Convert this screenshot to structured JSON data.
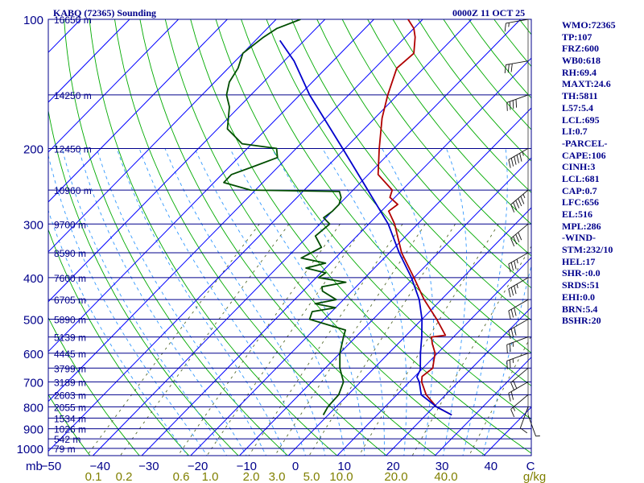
{
  "header": {
    "station": "KABQ (72365) Sounding",
    "time": "0000Z 11 OCT 25"
  },
  "stats": [
    "WMO:72365",
    "TP:107",
    "FRZ:600",
    "WB0:618",
    "RH:69.4",
    "MAXT:24.6",
    "TH:5811",
    "L57:5.4",
    "LCL:695",
    "LI:0.7",
    "-PARCEL-",
    "CAPE:106",
    "CINH:3",
    "LCL:681",
    "CAP:0.7",
    "LFC:656",
    "EL:516",
    "MPL:286",
    "-WIND-",
    "STM:232/10",
    "HEL:17",
    "SHR-:0.0",
    "SRDS:51",
    "EHI:0.0",
    "BRN:5.4",
    "BSHR:20"
  ],
  "colors": {
    "isobar": "#00008b",
    "isotherm": "#0000ff",
    "dry_adiabat": "#00aa00",
    "moist_adiabat": "#3399ff",
    "mixing_ratio": "#556b2f",
    "temperature": "#b00000",
    "dewpoint": "#004d00",
    "parcel": "#0000cc",
    "axis_text": "#00008b",
    "mixing_label": "#808000"
  },
  "chart_data": {
    "type": "line",
    "diagram": "skew-T log-P",
    "title": "KABQ (72365) Sounding",
    "ylabel": "mb",
    "xunit": "C",
    "mixing_unit": "g/kg",
    "grid": true,
    "pressure_levels": [
      100,
      200,
      300,
      400,
      500,
      600,
      700,
      800,
      900,
      1000
    ],
    "pressure_labels": [
      "100",
      "200",
      "300",
      "400",
      "500",
      "600",
      "700",
      "800",
      "900",
      "1000"
    ],
    "temperature_ticks": [
      -50,
      -40,
      -30,
      -20,
      -10,
      0,
      10,
      20,
      30,
      40
    ],
    "temperature_labels": [
      "−50",
      "−40",
      "−30",
      "−20",
      "−10",
      "0",
      "10",
      "20",
      "30",
      "40"
    ],
    "mixing_ratio_labels": [
      "0.1",
      "0.2",
      "0.6",
      "1.0",
      "2.0",
      "3.0",
      "5.0",
      "10.0",
      "20.0",
      "40.0"
    ],
    "height_labels": [
      {
        "p": 100,
        "label": "16650 m"
      },
      {
        "p": 150,
        "label": "14250 m"
      },
      {
        "p": 200,
        "label": "12450 m"
      },
      {
        "p": 250,
        "label": "10960 m"
      },
      {
        "p": 300,
        "label": "9700 m"
      },
      {
        "p": 350,
        "label": "8590 m"
      },
      {
        "p": 400,
        "label": "7600 m"
      },
      {
        "p": 450,
        "label": "6705 m"
      },
      {
        "p": 500,
        "label": "5890 m"
      },
      {
        "p": 550,
        "label": "5139 m"
      },
      {
        "p": 600,
        "label": "4445 m"
      },
      {
        "p": 650,
        "label": "3799 m"
      },
      {
        "p": 700,
        "label": "3189 m"
      },
      {
        "p": 750,
        "label": "2603 m"
      },
      {
        "p": 800,
        "label": "2055 m"
      },
      {
        "p": 850,
        "label": "1534 m"
      },
      {
        "p": 900,
        "label": "1026 m"
      },
      {
        "p": 950,
        "label": "542 m"
      },
      {
        "p": 1000,
        "label": "79 m"
      }
    ],
    "series": [
      {
        "points": [
          [
            836,
            25.3
          ],
          [
            800,
            20.5
          ],
          [
            750,
            16.0
          ],
          [
            700,
            12.5
          ],
          [
            680,
            11.5
          ],
          [
            650,
            12.0
          ],
          [
            620,
            10.5
          ],
          [
            600,
            9.5
          ],
          [
            570,
            7.0
          ],
          [
            550,
            5.5
          ],
          [
            545,
            8.0
          ],
          [
            500,
            3.0
          ],
          [
            450,
            -3.5
          ],
          [
            400,
            -10.0
          ],
          [
            350,
            -17.5
          ],
          [
            300,
            -24.7
          ],
          [
            280,
            -28.5
          ],
          [
            270,
            -28.0
          ],
          [
            260,
            -31.0
          ],
          [
            250,
            -32.0
          ],
          [
            230,
            -38.0
          ],
          [
            200,
            -43.0
          ],
          [
            170,
            -48.5
          ],
          [
            150,
            -52.0
          ],
          [
            130,
            -55.5
          ],
          [
            120,
            -55.0
          ],
          [
            110,
            -58.0
          ],
          [
            105,
            -60.0
          ],
          [
            100,
            -63.0
          ]
        ]
      },
      {
        "points": [
          [
            836,
            -1.0
          ],
          [
            800,
            -1.7
          ],
          [
            750,
            -1.9
          ],
          [
            700,
            -3.5
          ],
          [
            650,
            -7.0
          ],
          [
            600,
            -10.0
          ],
          [
            550,
            -12.5
          ],
          [
            530,
            -13.5
          ],
          [
            500,
            -23.0
          ],
          [
            480,
            -24.0
          ],
          [
            470,
            -20.0
          ],
          [
            460,
            -25.0
          ],
          [
            450,
            -21.5
          ],
          [
            430,
            -26.0
          ],
          [
            420,
            -27.0
          ],
          [
            410,
            -23.0
          ],
          [
            400,
            -29.5
          ],
          [
            390,
            -29.0
          ],
          [
            380,
            -34.0
          ],
          [
            370,
            -31.0
          ],
          [
            360,
            -37.0
          ],
          [
            340,
            -35.0
          ],
          [
            320,
            -38.5
          ],
          [
            300,
            -38.0
          ],
          [
            290,
            -40.5
          ],
          [
            280,
            -40.0
          ],
          [
            270,
            -40.0
          ],
          [
            260,
            -41.0
          ],
          [
            252,
            -42.5
          ],
          [
            250,
            -61.0
          ],
          [
            240,
            -68.0
          ],
          [
            230,
            -68.0
          ],
          [
            220,
            -65.0
          ],
          [
            210,
            -62.0
          ],
          [
            200,
            -64.0
          ],
          [
            195,
            -72.0
          ],
          [
            180,
            -78.0
          ],
          [
            160,
            -82.0
          ],
          [
            150,
            -85.0
          ],
          [
            140,
            -87.0
          ],
          [
            130,
            -88.0
          ],
          [
            120,
            -90.0
          ],
          [
            110,
            -89.0
          ],
          [
            105,
            -88.0
          ],
          [
            100,
            -85.0
          ]
        ]
      },
      {
        "points": [
          [
            836,
            25.3
          ],
          [
            800,
            20.5
          ],
          [
            750,
            15.0
          ],
          [
            700,
            12.0
          ],
          [
            681,
            10.5
          ],
          [
            656,
            9.8
          ],
          [
            600,
            6.5
          ],
          [
            550,
            3.5
          ],
          [
            500,
            0.0
          ],
          [
            450,
            -4.5
          ],
          [
            400,
            -10.5
          ],
          [
            350,
            -18.0
          ],
          [
            300,
            -26.0
          ],
          [
            250,
            -37.0
          ],
          [
            200,
            -50.5
          ],
          [
            150,
            -68.0
          ],
          [
            125,
            -78.0
          ],
          [
            112,
            -85.0
          ]
        ]
      }
    ],
    "wind_barbs": [
      {
        "p": 836,
        "dir": 160,
        "spd": 5
      },
      {
        "p": 800,
        "dir": 200,
        "spd": 10
      },
      {
        "p": 750,
        "dir": 230,
        "spd": 15
      },
      {
        "p": 700,
        "dir": 240,
        "spd": 20
      },
      {
        "p": 650,
        "dir": 230,
        "spd": 20
      },
      {
        "p": 600,
        "dir": 250,
        "spd": 25
      },
      {
        "p": 550,
        "dir": 250,
        "spd": 25
      },
      {
        "p": 500,
        "dir": 240,
        "spd": 30
      },
      {
        "p": 450,
        "dir": 240,
        "spd": 30
      },
      {
        "p": 400,
        "dir": 240,
        "spd": 35
      },
      {
        "p": 350,
        "dir": 240,
        "spd": 35
      },
      {
        "p": 300,
        "dir": 230,
        "spd": 40
      },
      {
        "p": 250,
        "dir": 230,
        "spd": 55
      },
      {
        "p": 200,
        "dir": 240,
        "spd": 55
      },
      {
        "p": 150,
        "dir": 250,
        "spd": 40
      },
      {
        "p": 125,
        "dir": 260,
        "spd": 30
      },
      {
        "p": 100,
        "dir": 260,
        "spd": 15
      }
    ]
  }
}
